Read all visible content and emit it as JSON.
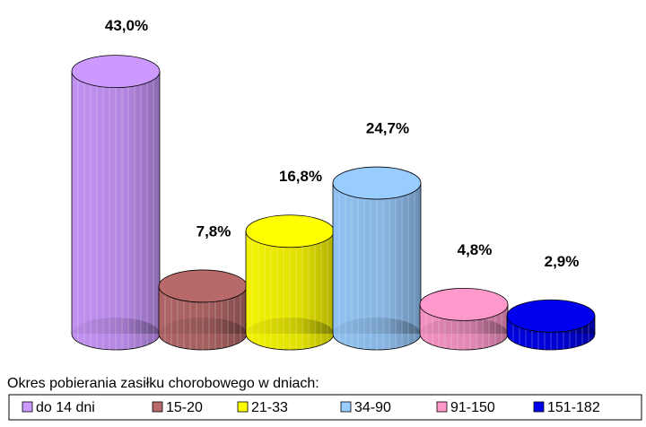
{
  "chart_data": {
    "type": "cylinder-bar",
    "categories": [
      "do 14 dni",
      "15-20",
      "21-33",
      "34-90",
      "91-150",
      "151-182"
    ],
    "values": [
      43.0,
      7.8,
      16.8,
      24.7,
      4.8,
      2.9
    ],
    "value_labels": [
      "43,0%",
      "7,8%",
      "16,8%",
      "24,7%",
      "4,8%",
      "2,9%"
    ],
    "colors": [
      "#cc99ff",
      "#b86a6a",
      "#ffff00",
      "#99ccff",
      "#ff99cc",
      "#0000ee"
    ],
    "legend_title": "Okres pobierania zasiłku chorobowego w dniach:"
  }
}
